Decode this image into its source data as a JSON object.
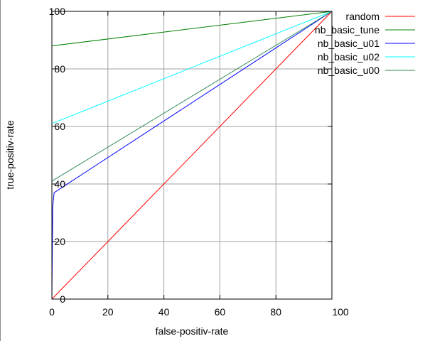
{
  "chart_data": {
    "type": "line",
    "title": "",
    "xlabel": "false-positiv-rate",
    "ylabel": "true-positiv-rate",
    "xlim": [
      0,
      100
    ],
    "ylim": [
      0,
      100
    ],
    "xticks": [
      0,
      20,
      40,
      60,
      80,
      100
    ],
    "yticks": [
      0,
      20,
      40,
      60,
      80,
      100
    ],
    "xtick_labels": [
      "0",
      "20",
      "40",
      "60",
      "80",
      "100"
    ],
    "ytick_labels": [
      "0",
      "20",
      "40",
      "60",
      "80",
      "100"
    ],
    "grid": true,
    "legend_position": "top-right",
    "series": [
      {
        "name": "random",
        "color": "#ff0000",
        "x": [
          0,
          100
        ],
        "y": [
          0,
          100
        ]
      },
      {
        "name": "nb_basic_tune",
        "color": "#008000",
        "x": [
          0,
          0,
          100
        ],
        "y": [
          0,
          88,
          100
        ]
      },
      {
        "name": "nb_basic_u01",
        "color": "#0000ff",
        "x": [
          0,
          0.3,
          0.8,
          100
        ],
        "y": [
          0,
          32,
          37,
          100
        ]
      },
      {
        "name": "nb_basic_u02",
        "color": "#00ffff",
        "x": [
          0,
          0,
          100
        ],
        "y": [
          0,
          61,
          100
        ]
      },
      {
        "name": "nb_basic_u00",
        "color": "#2e8b57",
        "x": [
          0,
          0,
          100
        ],
        "y": [
          0,
          41,
          100
        ]
      }
    ]
  }
}
